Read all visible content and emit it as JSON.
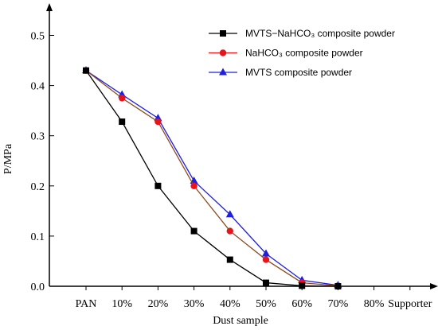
{
  "chart_data": {
    "type": "line",
    "title": "",
    "xlabel": "Dust sample",
    "ylabel": "P/MPa",
    "categories": [
      "PAN",
      "10%",
      "20%",
      "30%",
      "40%",
      "50%",
      "60%",
      "70%",
      "80%",
      "Supporter"
    ],
    "ylim": [
      0,
      0.55
    ],
    "yticks": [
      0.0,
      0.1,
      0.2,
      0.3,
      0.4,
      0.5
    ],
    "ytick_labels": [
      "0.0",
      "0.1",
      "0.2",
      "0.3",
      "0.4",
      "0.5"
    ],
    "grid": false,
    "legend_position": "top-right",
    "series": [
      {
        "name": "MVTS−NaHCO₃ composite powder",
        "color": "#000000",
        "marker": "square",
        "values": [
          0.43,
          0.328,
          0.2,
          0.11,
          0.053,
          0.007,
          0.001,
          0.0,
          null,
          null
        ]
      },
      {
        "name": "NaHCO₃ composite powder",
        "color": "#e8141c",
        "line_color": "#8b4a1e",
        "marker": "circle",
        "values": [
          0.43,
          0.375,
          0.328,
          0.2,
          0.11,
          0.053,
          0.007,
          0.001,
          null,
          null
        ]
      },
      {
        "name": "MVTS  composite powder",
        "color": "#1f1fe0",
        "marker": "triangle",
        "values": [
          0.43,
          0.382,
          0.335,
          0.21,
          0.143,
          0.065,
          0.012,
          0.002,
          null,
          null
        ]
      }
    ]
  }
}
